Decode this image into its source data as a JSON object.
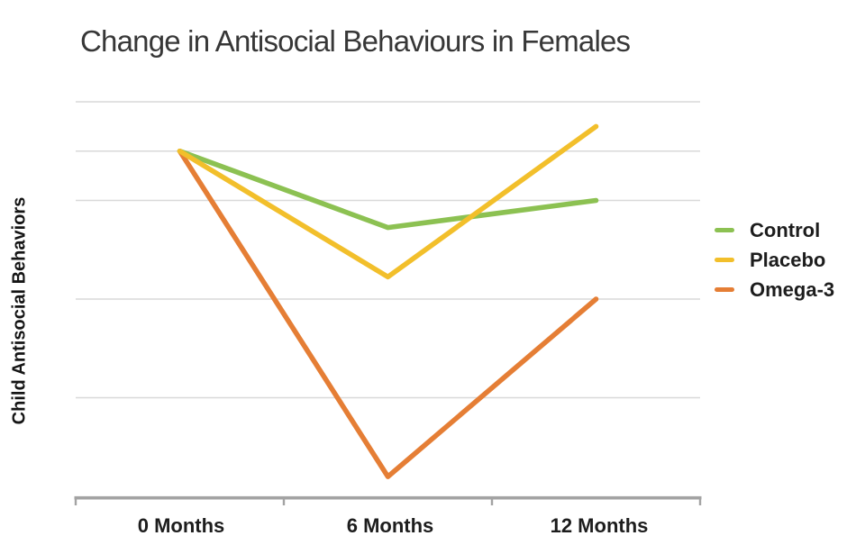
{
  "title": "Change in Antisocial Behaviours in Females",
  "y_axis_label": "Child Antisocial Behaviors",
  "chart_data": {
    "type": "line",
    "title": "Change in Antisocial Behaviours in Females",
    "xlabel": "",
    "ylabel": "Child Antisocial Behaviors",
    "categories": [
      "0 Months",
      "6 Months",
      "12 Months"
    ],
    "series": [
      {
        "name": "Control",
        "color": "#8cc152",
        "values": [
          7.0,
          5.45,
          6.0
        ]
      },
      {
        "name": "Placebo",
        "color": "#f2bf2b",
        "values": [
          7.0,
          4.45,
          7.5
        ]
      },
      {
        "name": "Omega-3",
        "color": "#e57e35",
        "values": [
          7.0,
          0.4,
          4.0
        ]
      }
    ],
    "ylim": [
      0,
      8
    ],
    "gridline_values": [
      2,
      4,
      6,
      7,
      8
    ],
    "y_tick_labels_visible": false,
    "grid": true,
    "legend_position": "right"
  },
  "colors": {
    "gridline": "#d9d9d9",
    "axis": "#a3a3a3",
    "background": "#ffffff"
  }
}
